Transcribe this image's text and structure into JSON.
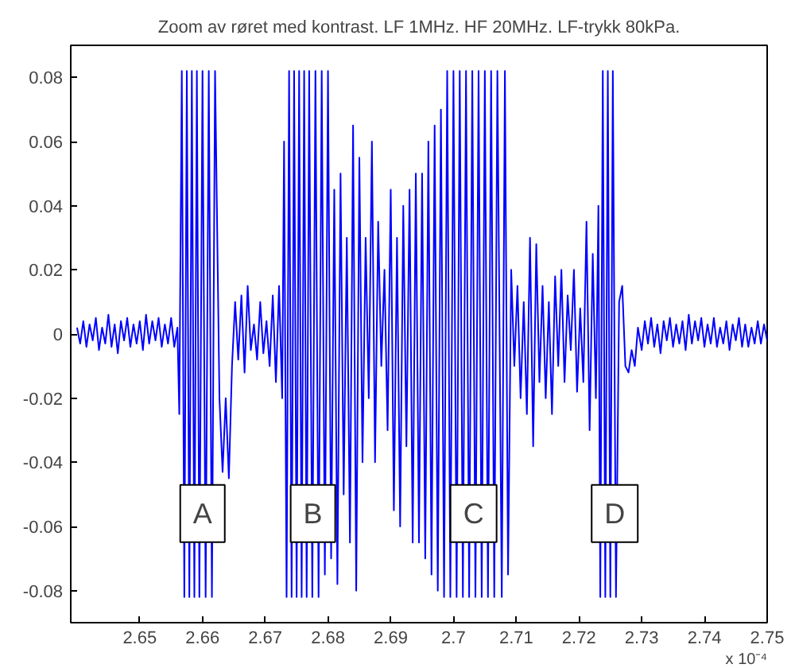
{
  "chart_data": {
    "type": "line",
    "title": "Zoom av røret med kontrast. LF 1MHz. HF 20MHz. LF-trykk 80kPa.",
    "x": [
      2.64,
      2.6405,
      2.641,
      2.6415,
      2.642,
      2.6425,
      2.643,
      2.6435,
      2.644,
      2.6445,
      2.645,
      2.6455,
      2.646,
      2.6465,
      2.647,
      2.6475,
      2.648,
      2.6485,
      2.649,
      2.6495,
      2.65,
      2.6505,
      2.651,
      2.6515,
      2.652,
      2.6525,
      2.653,
      2.6535,
      2.654,
      2.6545,
      2.655,
      2.6555,
      2.656,
      2.6563,
      2.6567,
      2.6571,
      2.6575,
      2.6579,
      2.6583,
      2.6587,
      2.6591,
      2.6595,
      2.66,
      2.6605,
      2.661,
      2.6615,
      2.662,
      2.6627,
      2.6632,
      2.6637,
      2.6642,
      2.6647,
      2.6652,
      2.6657,
      2.6662,
      2.6667,
      2.6672,
      2.6677,
      2.6682,
      2.6687,
      2.6692,
      2.6697,
      2.6702,
      2.6707,
      2.6712,
      2.6717,
      2.6722,
      2.6727,
      2.673,
      2.6734,
      2.6738,
      2.6742,
      2.6746,
      2.675,
      2.6754,
      2.6758,
      2.6762,
      2.6766,
      2.677,
      2.6775,
      2.678,
      2.6785,
      2.679,
      2.6795,
      2.68,
      2.6805,
      2.681,
      2.6815,
      2.682,
      2.6825,
      2.683,
      2.6835,
      2.684,
      2.6845,
      2.685,
      2.6855,
      2.686,
      2.6865,
      2.687,
      2.6875,
      2.688,
      2.6885,
      2.689,
      2.6895,
      2.69,
      2.6905,
      2.691,
      2.6915,
      2.692,
      2.6925,
      2.693,
      2.6935,
      2.694,
      2.6945,
      2.695,
      2.6955,
      2.696,
      2.6965,
      2.697,
      2.6975,
      2.698,
      2.6985,
      2.699,
      2.6995,
      2.7,
      2.7005,
      2.701,
      2.7015,
      2.702,
      2.7025,
      2.703,
      2.7035,
      2.704,
      2.7045,
      2.705,
      2.7055,
      2.706,
      2.7065,
      2.707,
      2.7077,
      2.7082,
      2.7087,
      2.7092,
      2.7097,
      2.7102,
      2.7107,
      2.7112,
      2.7117,
      2.7122,
      2.7127,
      2.7132,
      2.7137,
      2.7142,
      2.7147,
      2.7152,
      2.7157,
      2.7162,
      2.7167,
      2.7172,
      2.7177,
      2.7182,
      2.7187,
      2.7192,
      2.7197,
      2.7202,
      2.7207,
      2.7212,
      2.7217,
      2.7222,
      2.7227,
      2.7231,
      2.7234,
      2.7238,
      2.7242,
      2.7246,
      2.725,
      2.7254,
      2.7259,
      2.7264,
      2.7269,
      2.7274,
      2.7279,
      2.7284,
      2.7289,
      2.7294,
      2.73,
      2.7305,
      2.731,
      2.7315,
      2.732,
      2.7325,
      2.733,
      2.7335,
      2.734,
      2.7345,
      2.735,
      2.7355,
      2.736,
      2.7365,
      2.737,
      2.7375,
      2.738,
      2.7385,
      2.739,
      2.7395,
      2.74,
      2.7405,
      2.741,
      2.7415,
      2.742,
      2.7425,
      2.743,
      2.7435,
      2.744,
      2.7445,
      2.745,
      2.7455,
      2.746,
      2.7465,
      2.747,
      2.7475,
      2.748,
      2.7485,
      2.749,
      2.7495,
      2.75
    ],
    "series": [
      {
        "color": "#0000ff",
        "values": [
          0.002,
          -0.003,
          0.004,
          -0.004,
          0.003,
          -0.002,
          0.005,
          -0.005,
          0.002,
          -0.003,
          0.006,
          -0.004,
          0.003,
          -0.006,
          0.004,
          -0.002,
          0.005,
          -0.004,
          0.003,
          -0.003,
          0.004,
          -0.005,
          0.006,
          -0.003,
          0.004,
          -0.002,
          0.005,
          -0.004,
          0.003,
          -0.003,
          0.005,
          -0.004,
          0.002,
          -0.025,
          0.082,
          -0.082,
          0.082,
          -0.082,
          0.082,
          -0.082,
          0.082,
          -0.082,
          0.082,
          -0.082,
          0.082,
          -0.082,
          0.082,
          -0.02,
          -0.043,
          -0.02,
          -0.045,
          -0.01,
          0.01,
          -0.008,
          0.012,
          -0.012,
          0.015,
          -0.005,
          0.003,
          -0.008,
          0.01,
          -0.006,
          0.004,
          -0.01,
          0.012,
          -0.015,
          0.015,
          -0.02,
          0.06,
          -0.082,
          0.082,
          -0.082,
          0.082,
          -0.082,
          0.082,
          -0.082,
          0.082,
          -0.082,
          0.082,
          -0.082,
          0.082,
          -0.082,
          0.082,
          -0.075,
          0.082,
          -0.07,
          0.045,
          -0.078,
          0.05,
          -0.05,
          0.03,
          -0.065,
          0.065,
          -0.08,
          0.055,
          -0.04,
          0.03,
          -0.02,
          0.06,
          -0.04,
          0.035,
          -0.01,
          0.02,
          -0.03,
          0.045,
          -0.055,
          0.03,
          -0.06,
          0.04,
          -0.035,
          0.045,
          -0.065,
          0.05,
          -0.065,
          0.05,
          -0.07,
          0.06,
          -0.075,
          0.065,
          -0.08,
          0.07,
          -0.082,
          0.082,
          -0.082,
          0.082,
          -0.082,
          0.082,
          -0.082,
          0.082,
          -0.082,
          0.082,
          -0.082,
          0.082,
          -0.082,
          0.082,
          -0.082,
          0.082,
          -0.082,
          0.082,
          -0.082,
          0.082,
          -0.075,
          0.02,
          -0.01,
          0.015,
          -0.02,
          0.01,
          -0.025,
          0.03,
          -0.035,
          0.028,
          -0.015,
          0.015,
          -0.02,
          0.01,
          -0.025,
          0.018,
          -0.01,
          0.02,
          -0.015,
          0.012,
          -0.005,
          0.02,
          -0.018,
          0.008,
          -0.015,
          0.035,
          -0.03,
          0.025,
          -0.02,
          0.04,
          -0.082,
          0.082,
          -0.082,
          0.082,
          -0.082,
          0.082,
          -0.082,
          0.01,
          0.015,
          -0.01,
          -0.012,
          -0.005,
          -0.01,
          0.002,
          -0.005,
          0.004,
          -0.003,
          0.005,
          -0.004,
          0.003,
          -0.006,
          0.004,
          -0.002,
          0.005,
          -0.004,
          0.003,
          -0.003,
          0.004,
          -0.005,
          0.006,
          -0.003,
          0.004,
          -0.002,
          0.005,
          -0.004,
          0.003,
          -0.003,
          0.005,
          -0.004,
          0.002,
          -0.003,
          0.004,
          -0.005,
          0.003,
          -0.002,
          0.005,
          -0.004,
          0.003,
          -0.004,
          0.002,
          -0.003,
          0.004,
          -0.003,
          0.003,
          -0.002
        ]
      }
    ],
    "xlim": [
      2.639,
      2.75
    ],
    "ylim": [
      -0.09,
      0.09
    ],
    "xticks": [
      2.65,
      2.66,
      2.67,
      2.68,
      2.69,
      2.7,
      2.71,
      2.72,
      2.73,
      2.74,
      2.75
    ],
    "yticks": [
      -0.08,
      -0.06,
      -0.04,
      -0.02,
      0,
      0.02,
      0.04,
      0.06,
      0.08
    ],
    "grid": false,
    "marker": "none",
    "line_style": "solid",
    "annotations": [
      "x 10⁻⁴",
      {
        "text": "A",
        "x": 2.66,
        "y": -0.056
      },
      {
        "text": "B",
        "x": 2.6776,
        "y": -0.056
      },
      {
        "text": "C",
        "x": 2.7032,
        "y": -0.056
      },
      {
        "text": "D",
        "x": 2.7257,
        "y": -0.056
      }
    ]
  }
}
